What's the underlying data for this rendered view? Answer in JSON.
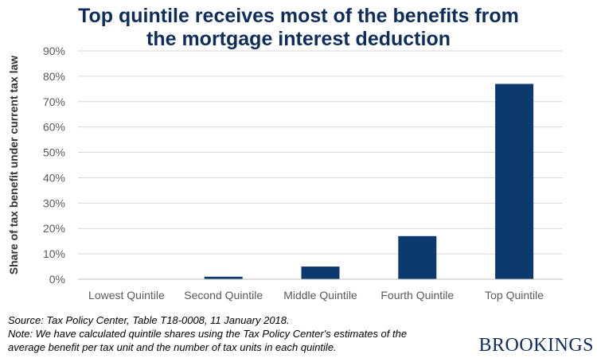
{
  "chart_data": {
    "type": "bar",
    "title_lines": [
      "Top quintile receives most of the benefits from",
      "the mortgage interest deduction"
    ],
    "categories": [
      "Lowest Quintile",
      "Second Quintile",
      "Middle Quintile",
      "Fourth Quintile",
      "Top Quintile"
    ],
    "values": [
      0.0,
      1.0,
      5.0,
      17.0,
      77.0
    ],
    "ylabel": "Share of tax benefit under current tax law",
    "xlabel": "",
    "ylim": [
      0,
      90
    ],
    "yticks": [
      0,
      10,
      20,
      30,
      40,
      50,
      60,
      70,
      80,
      90
    ],
    "ytick_labels": [
      "0%",
      "10%",
      "20%",
      "30%",
      "40%",
      "50%",
      "60%",
      "70%",
      "80%",
      "90%"
    ],
    "grid": true,
    "bar_color": "#0d3a6e"
  },
  "source": {
    "lines": [
      "Source: Tax Policy Center, Table T18-0008, 11 January 2018.",
      "Note: We have calculated quintile shares using the Tax Policy Center's estimates of the",
      "average benefit per tax unit and the number of tax units in each quintile."
    ]
  },
  "brand": {
    "logo_text": "BROOKINGS",
    "color": "#0d2d5c"
  }
}
